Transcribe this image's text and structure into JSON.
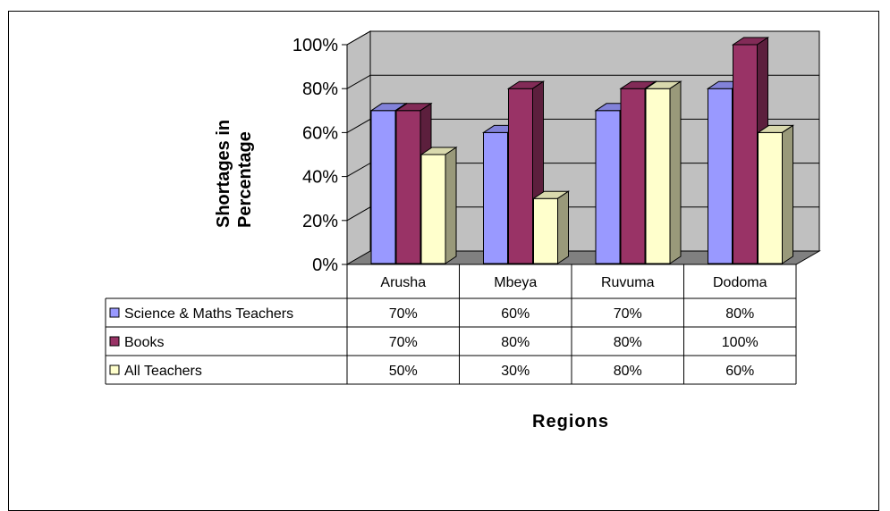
{
  "chart_data": {
    "type": "bar",
    "three_d": true,
    "categories": [
      "Arusha",
      "Mbeya",
      "Ruvuma",
      "Dodoma"
    ],
    "series": [
      {
        "name": "Science & Maths Teachers",
        "values": [
          70,
          60,
          70,
          80
        ],
        "labels": [
          "70%",
          "60%",
          "70%",
          "80%"
        ],
        "color": "#9999ff"
      },
      {
        "name": "Books",
        "values": [
          70,
          80,
          80,
          100
        ],
        "labels": [
          "70%",
          "80%",
          "80%",
          "100%"
        ],
        "color": "#993366"
      },
      {
        "name": "All Teachers",
        "values": [
          50,
          30,
          80,
          60
        ],
        "labels": [
          "50%",
          "30%",
          "80%",
          "60%"
        ],
        "color": "#ffffcc"
      }
    ],
    "ylabel_lines": [
      "Shortages in",
      "Percentage"
    ],
    "xlabel": "Regions",
    "ylim": [
      0,
      100
    ],
    "yticks": [
      "0%",
      "20%",
      "40%",
      "60%",
      "80%",
      "100%"
    ],
    "grid": true,
    "legend": "data-table",
    "wall_color": "#c0c0c0",
    "floor_color": "#808080"
  }
}
